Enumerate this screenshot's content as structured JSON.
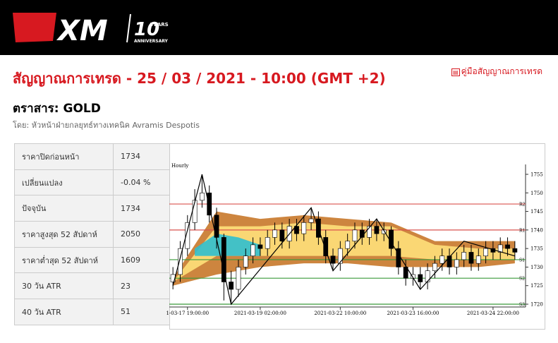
{
  "header": {
    "brand": "XM",
    "years": "10",
    "years_word": "YEARS",
    "anniversary": "ANNIVERSARY"
  },
  "title": "สัญญาณการเทรด - 25 / 03 / 2021 - 10:00 (GMT +2)",
  "guide_link": "คู่มือสัญญาณการเทรด",
  "instrument": "ตราสาร: GOLD",
  "author": "โดย: หัวหน้าฝ่ายกลยุทธ์ทางเทคนิค Avramis Despotis",
  "table": {
    "rows": [
      [
        "ราคาปิดก่อนหน้า",
        "1734"
      ],
      [
        "เปลี่ยนแปลง",
        "-0.04 %"
      ],
      [
        "ปัจจุบัน",
        "1734"
      ],
      [
        "ราคาสูงสุด 52 สัปดาห์",
        "2050"
      ],
      [
        "ราคาต่ำสุด 52 สัปดาห์",
        "1609"
      ],
      [
        "30 วัน ATR",
        "23"
      ],
      [
        "40 วัน ATR",
        "51"
      ]
    ]
  },
  "chart_data": {
    "type": "candlestick",
    "label": "Hourly",
    "categories": [
      null,
      null,
      "1-03-17 19:00:00",
      null,
      null,
      null,
      null,
      null,
      null,
      null,
      null,
      null,
      "2021-03-19 02:00:00",
      null,
      null,
      null,
      null,
      null,
      null,
      null,
      null,
      null,
      null,
      "2021-03-22 10:00:00",
      null,
      null,
      null,
      null,
      null,
      null,
      null,
      null,
      null,
      "2021-03-23 16:00:00",
      null,
      null,
      null,
      null,
      null,
      null,
      null,
      null,
      null,
      null,
      "2021-03-24 22:00:00",
      null,
      null,
      null
    ],
    "open": [
      1726,
      1728,
      1735,
      1742,
      1748,
      1750,
      1744,
      1738,
      1726,
      1724,
      1730,
      1733,
      1736,
      1735,
      1738,
      1740,
      1737,
      1741,
      1739,
      1742,
      1743,
      1738,
      1733,
      1731,
      1735,
      1737,
      1740,
      1738,
      1741,
      1739,
      1740,
      1735,
      1730,
      1727,
      1728,
      1726,
      1729,
      1731,
      1733,
      1730,
      1732,
      1734,
      1731,
      1733,
      1735,
      1734,
      1736,
      1735
    ],
    "high": [
      1730,
      1737,
      1744,
      1751,
      1755,
      1752,
      1746,
      1739,
      1729,
      1732,
      1735,
      1738,
      1738,
      1740,
      1742,
      1742,
      1743,
      1743,
      1744,
      1746,
      1745,
      1740,
      1735,
      1737,
      1739,
      1742,
      1742,
      1743,
      1743,
      1742,
      1741,
      1737,
      1732,
      1730,
      1730,
      1731,
      1733,
      1735,
      1735,
      1734,
      1736,
      1736,
      1735,
      1737,
      1737,
      1738,
      1738,
      1737
    ],
    "low": [
      1724,
      1726,
      1733,
      1740,
      1746,
      1742,
      1735,
      1721,
      1720,
      1722,
      1728,
      1731,
      1733,
      1733,
      1736,
      1735,
      1735,
      1737,
      1737,
      1740,
      1736,
      1731,
      1729,
      1729,
      1733,
      1735,
      1736,
      1736,
      1737,
      1737,
      1733,
      1728,
      1725,
      1725,
      1724,
      1724,
      1727,
      1729,
      1728,
      1728,
      1730,
      1729,
      1729,
      1731,
      1732,
      1732,
      1733,
      1732
    ],
    "close": [
      1728,
      1735,
      1742,
      1748,
      1750,
      1744,
      1738,
      1726,
      1724,
      1730,
      1733,
      1736,
      1735,
      1738,
      1740,
      1737,
      1741,
      1739,
      1742,
      1743,
      1738,
      1733,
      1731,
      1735,
      1737,
      1740,
      1738,
      1741,
      1739,
      1740,
      1735,
      1730,
      1727,
      1728,
      1726,
      1729,
      1731,
      1733,
      1730,
      1732,
      1734,
      1731,
      1733,
      1735,
      1734,
      1736,
      1735,
      1734
    ],
    "ylim": [
      1720,
      1755
    ],
    "yticks": [
      1720,
      1725,
      1730,
      1735,
      1740,
      1745,
      1750,
      1755
    ],
    "levels": [
      {
        "name": "R2",
        "value": 1747,
        "color": "#d9534f"
      },
      {
        "name": "R1",
        "value": 1740,
        "color": "#d9534f"
      },
      {
        "name": "S1",
        "value": 1732,
        "color": "#3a9a3a"
      },
      {
        "name": "S2",
        "value": 1727,
        "color": "#3a9a3a"
      },
      {
        "name": "S3",
        "value": 1720,
        "color": "#3a9a3a"
      }
    ],
    "bands": [
      {
        "color": "#c8782a",
        "x": [
          0,
          6,
          12,
          18,
          24,
          30,
          36,
          42,
          47
        ],
        "upper": [
          1727,
          1745,
          1743,
          1744,
          1743,
          1742,
          1737,
          1737,
          1737
        ],
        "lower": [
          1725,
          1728,
          1730,
          1731,
          1731,
          1730,
          1730,
          1730,
          1731
        ]
      },
      {
        "color": "#ffe07a",
        "x": [
          0,
          6,
          12,
          18,
          24,
          30,
          36,
          42,
          47
        ],
        "upper": [
          1726,
          1741,
          1741,
          1742,
          1741,
          1741,
          1736,
          1735,
          1735
        ],
        "lower": [
          1726,
          1733,
          1733,
          1733,
          1733,
          1733,
          1732,
          1732,
          1732
        ]
      },
      {
        "color": "#2fbfcf",
        "x": [
          3,
          6,
          9,
          12
        ],
        "upper": [
          1735,
          1739,
          1738,
          1736
        ],
        "lower": [
          1733,
          1733,
          1733,
          1733
        ]
      }
    ],
    "zigzag": {
      "color": "#000000",
      "x": [
        0,
        4,
        8,
        19,
        22,
        28,
        34,
        40,
        47
      ],
      "values": [
        1725,
        1755,
        1720,
        1746,
        1729,
        1743,
        1724,
        1737,
        1733
      ]
    }
  }
}
